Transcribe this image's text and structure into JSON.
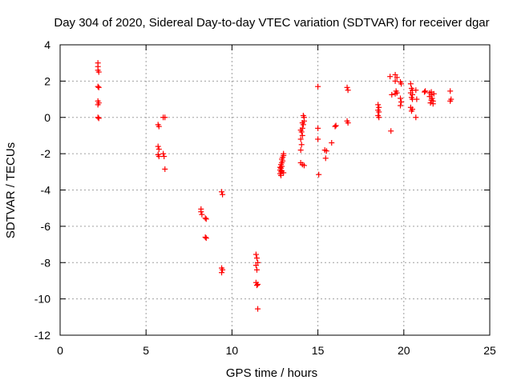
{
  "chart_data": {
    "type": "scatter",
    "title": "Day 304 of 2020, Sidereal Day-to-day VTEC variation (SDTVAR) for receiver dgar",
    "xlabel": "GPS time / hours",
    "ylabel": "SDTVAR / TECUs",
    "xlim": [
      0,
      25
    ],
    "ylim": [
      -12,
      4
    ],
    "xticks": [
      0,
      5,
      10,
      15,
      20,
      25
    ],
    "yticks": [
      -12,
      -10,
      -8,
      -6,
      -4,
      -2,
      0,
      2,
      4
    ],
    "grid": true,
    "marker": "plus",
    "color": "#ff0000",
    "series": [
      {
        "name": "dgar",
        "points": [
          [
            2.2,
            3.0
          ],
          [
            2.2,
            2.8
          ],
          [
            2.2,
            2.6
          ],
          [
            2.25,
            2.5
          ],
          [
            2.2,
            1.7
          ],
          [
            2.25,
            1.65
          ],
          [
            2.2,
            0.9
          ],
          [
            2.25,
            0.8
          ],
          [
            2.2,
            0.7
          ],
          [
            2.2,
            0.0
          ],
          [
            2.25,
            -0.05
          ],
          [
            5.7,
            -0.4
          ],
          [
            5.75,
            -0.5
          ],
          [
            6.0,
            0.0
          ],
          [
            6.1,
            0.0
          ],
          [
            5.7,
            -1.6
          ],
          [
            5.75,
            -1.75
          ],
          [
            5.7,
            -2.05
          ],
          [
            5.75,
            -2.15
          ],
          [
            6.0,
            -2.0
          ],
          [
            6.05,
            -2.15
          ],
          [
            6.1,
            -2.85
          ],
          [
            8.2,
            -5.05
          ],
          [
            8.2,
            -5.2
          ],
          [
            8.25,
            -5.35
          ],
          [
            8.45,
            -5.55
          ],
          [
            8.5,
            -5.6
          ],
          [
            8.45,
            -6.6
          ],
          [
            8.5,
            -6.65
          ],
          [
            9.4,
            -4.1
          ],
          [
            9.45,
            -4.25
          ],
          [
            9.4,
            -8.3
          ],
          [
            9.45,
            -8.4
          ],
          [
            9.4,
            -8.55
          ],
          [
            11.4,
            -7.55
          ],
          [
            11.45,
            -7.75
          ],
          [
            11.5,
            -8.0
          ],
          [
            11.4,
            -8.15
          ],
          [
            11.45,
            -8.4
          ],
          [
            11.4,
            -9.1
          ],
          [
            11.5,
            -9.2
          ],
          [
            11.45,
            -9.25
          ],
          [
            11.5,
            -10.55
          ],
          [
            12.8,
            -3.1
          ],
          [
            12.85,
            -3.0
          ],
          [
            12.8,
            -2.9
          ],
          [
            12.85,
            -2.8
          ],
          [
            12.9,
            -2.7
          ],
          [
            12.85,
            -2.6
          ],
          [
            12.9,
            -2.5
          ],
          [
            12.95,
            -2.4
          ],
          [
            12.9,
            -2.3
          ],
          [
            12.95,
            -2.2
          ],
          [
            13.0,
            -2.1
          ],
          [
            13.0,
            -2.0
          ],
          [
            12.8,
            -2.75
          ],
          [
            12.9,
            -2.95
          ],
          [
            13.0,
            -3.05
          ],
          [
            12.85,
            -3.2
          ],
          [
            14.0,
            -2.5
          ],
          [
            14.1,
            -2.6
          ],
          [
            14.2,
            -2.65
          ],
          [
            14.0,
            -1.8
          ],
          [
            14.05,
            -1.5
          ],
          [
            14.0,
            -1.2
          ],
          [
            14.1,
            -1.0
          ],
          [
            14.05,
            -0.8
          ],
          [
            14.1,
            -0.6
          ],
          [
            14.15,
            -0.4
          ],
          [
            14.2,
            -0.2
          ],
          [
            14.2,
            0.0
          ],
          [
            14.1,
            -0.3
          ],
          [
            14.0,
            -0.7
          ],
          [
            14.15,
            0.1
          ],
          [
            15.0,
            1.7
          ],
          [
            15.0,
            -0.6
          ],
          [
            15.0,
            -1.2
          ],
          [
            15.05,
            -3.15
          ],
          [
            15.4,
            -1.8
          ],
          [
            15.5,
            -1.85
          ],
          [
            15.45,
            -2.25
          ],
          [
            15.8,
            -1.4
          ],
          [
            16.0,
            -0.5
          ],
          [
            16.05,
            -0.45
          ],
          [
            16.7,
            1.65
          ],
          [
            16.75,
            1.5
          ],
          [
            16.7,
            -0.2
          ],
          [
            16.75,
            -0.3
          ],
          [
            18.5,
            0.7
          ],
          [
            18.55,
            0.55
          ],
          [
            18.5,
            0.4
          ],
          [
            18.55,
            0.3
          ],
          [
            18.5,
            0.1
          ],
          [
            18.55,
            0.0
          ],
          [
            19.2,
            2.25
          ],
          [
            19.3,
            1.25
          ],
          [
            19.25,
            -0.75
          ],
          [
            19.5,
            2.35
          ],
          [
            19.6,
            2.2
          ],
          [
            19.5,
            2.0
          ],
          [
            19.55,
            1.45
          ],
          [
            19.5,
            1.3
          ],
          [
            19.6,
            1.35
          ],
          [
            19.8,
            1.95
          ],
          [
            19.85,
            1.85
          ],
          [
            19.8,
            1.05
          ],
          [
            19.85,
            0.85
          ],
          [
            19.8,
            0.65
          ],
          [
            20.4,
            1.85
          ],
          [
            20.45,
            1.6
          ],
          [
            20.5,
            1.5
          ],
          [
            20.4,
            1.35
          ],
          [
            20.5,
            1.25
          ],
          [
            20.45,
            1.1
          ],
          [
            20.5,
            1.0
          ],
          [
            20.4,
            0.55
          ],
          [
            20.5,
            0.45
          ],
          [
            20.45,
            0.35
          ],
          [
            20.7,
            1.5
          ],
          [
            20.75,
            1.0
          ],
          [
            20.7,
            0.0
          ],
          [
            21.2,
            1.4
          ],
          [
            21.25,
            1.45
          ],
          [
            21.5,
            1.35
          ],
          [
            21.6,
            1.25
          ],
          [
            21.5,
            1.15
          ],
          [
            21.65,
            1.05
          ],
          [
            21.6,
            0.95
          ],
          [
            21.7,
            0.9
          ],
          [
            21.55,
            0.8
          ],
          [
            21.7,
            0.75
          ],
          [
            21.6,
            1.4
          ],
          [
            21.75,
            1.3
          ],
          [
            22.7,
            1.45
          ],
          [
            22.75,
            1.0
          ],
          [
            22.7,
            0.9
          ]
        ]
      }
    ]
  }
}
